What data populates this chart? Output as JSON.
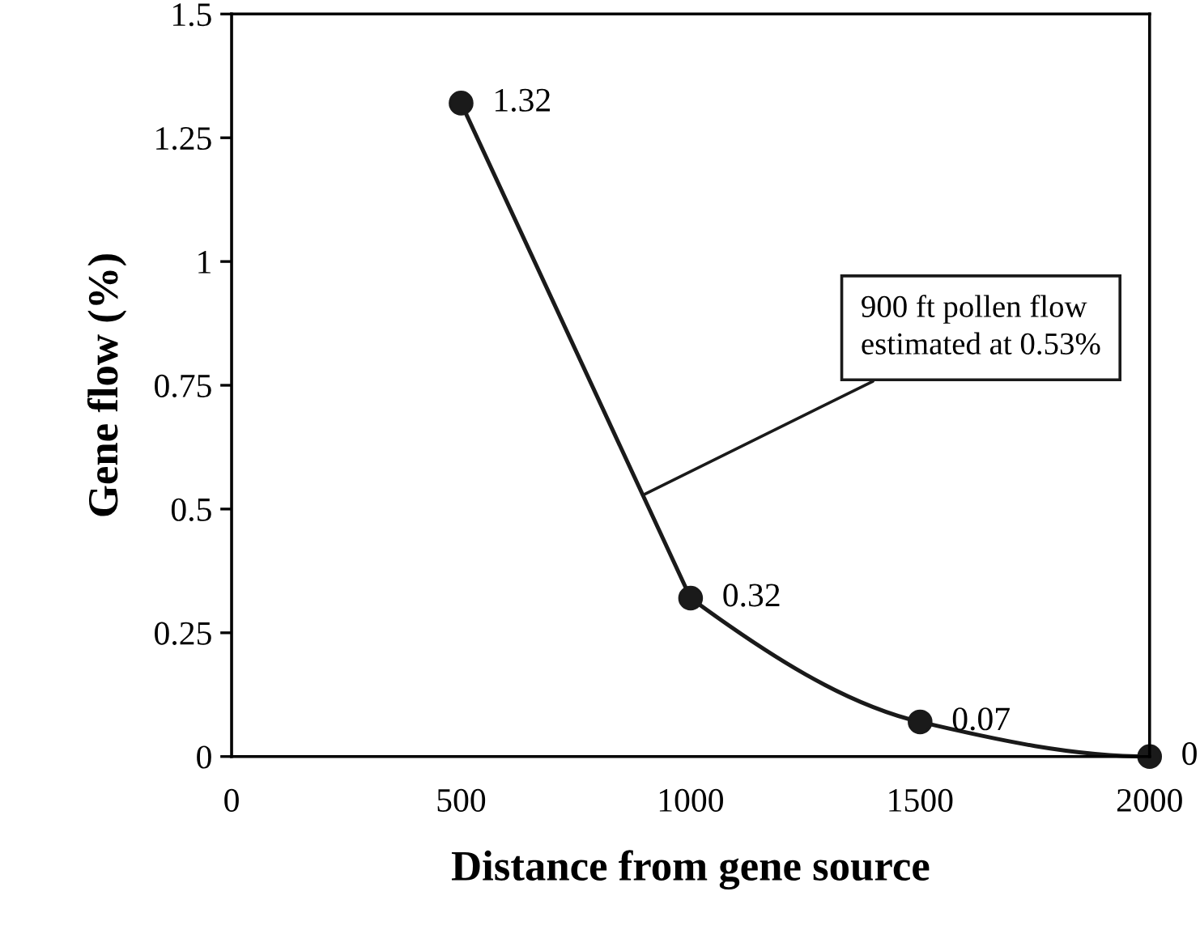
{
  "chart_data": {
    "type": "line",
    "xlabel": "Distance from gene source",
    "ylabel": "Gene flow (%)",
    "x": [
      500,
      1000,
      1500,
      2000
    ],
    "series": [
      {
        "color": "#1a1a1a",
        "values": [
          1.32,
          0.32,
          0.07,
          0
        ]
      }
    ],
    "data_labels": true,
    "marker": "circle",
    "line_style": "solid",
    "grid": false,
    "legend": false,
    "xlim": [
      0,
      2000
    ],
    "xticks": [
      0,
      500,
      1000,
      1500,
      2000
    ],
    "ylim": [
      0,
      1.5
    ],
    "yticks": [
      0,
      0.25,
      0.5,
      0.75,
      1,
      1.25,
      1.5
    ],
    "annotations": [
      {
        "text": "900 ft pollen flow\nestimated at 0.53%",
        "x": 900,
        "y": 0.53
      }
    ]
  }
}
